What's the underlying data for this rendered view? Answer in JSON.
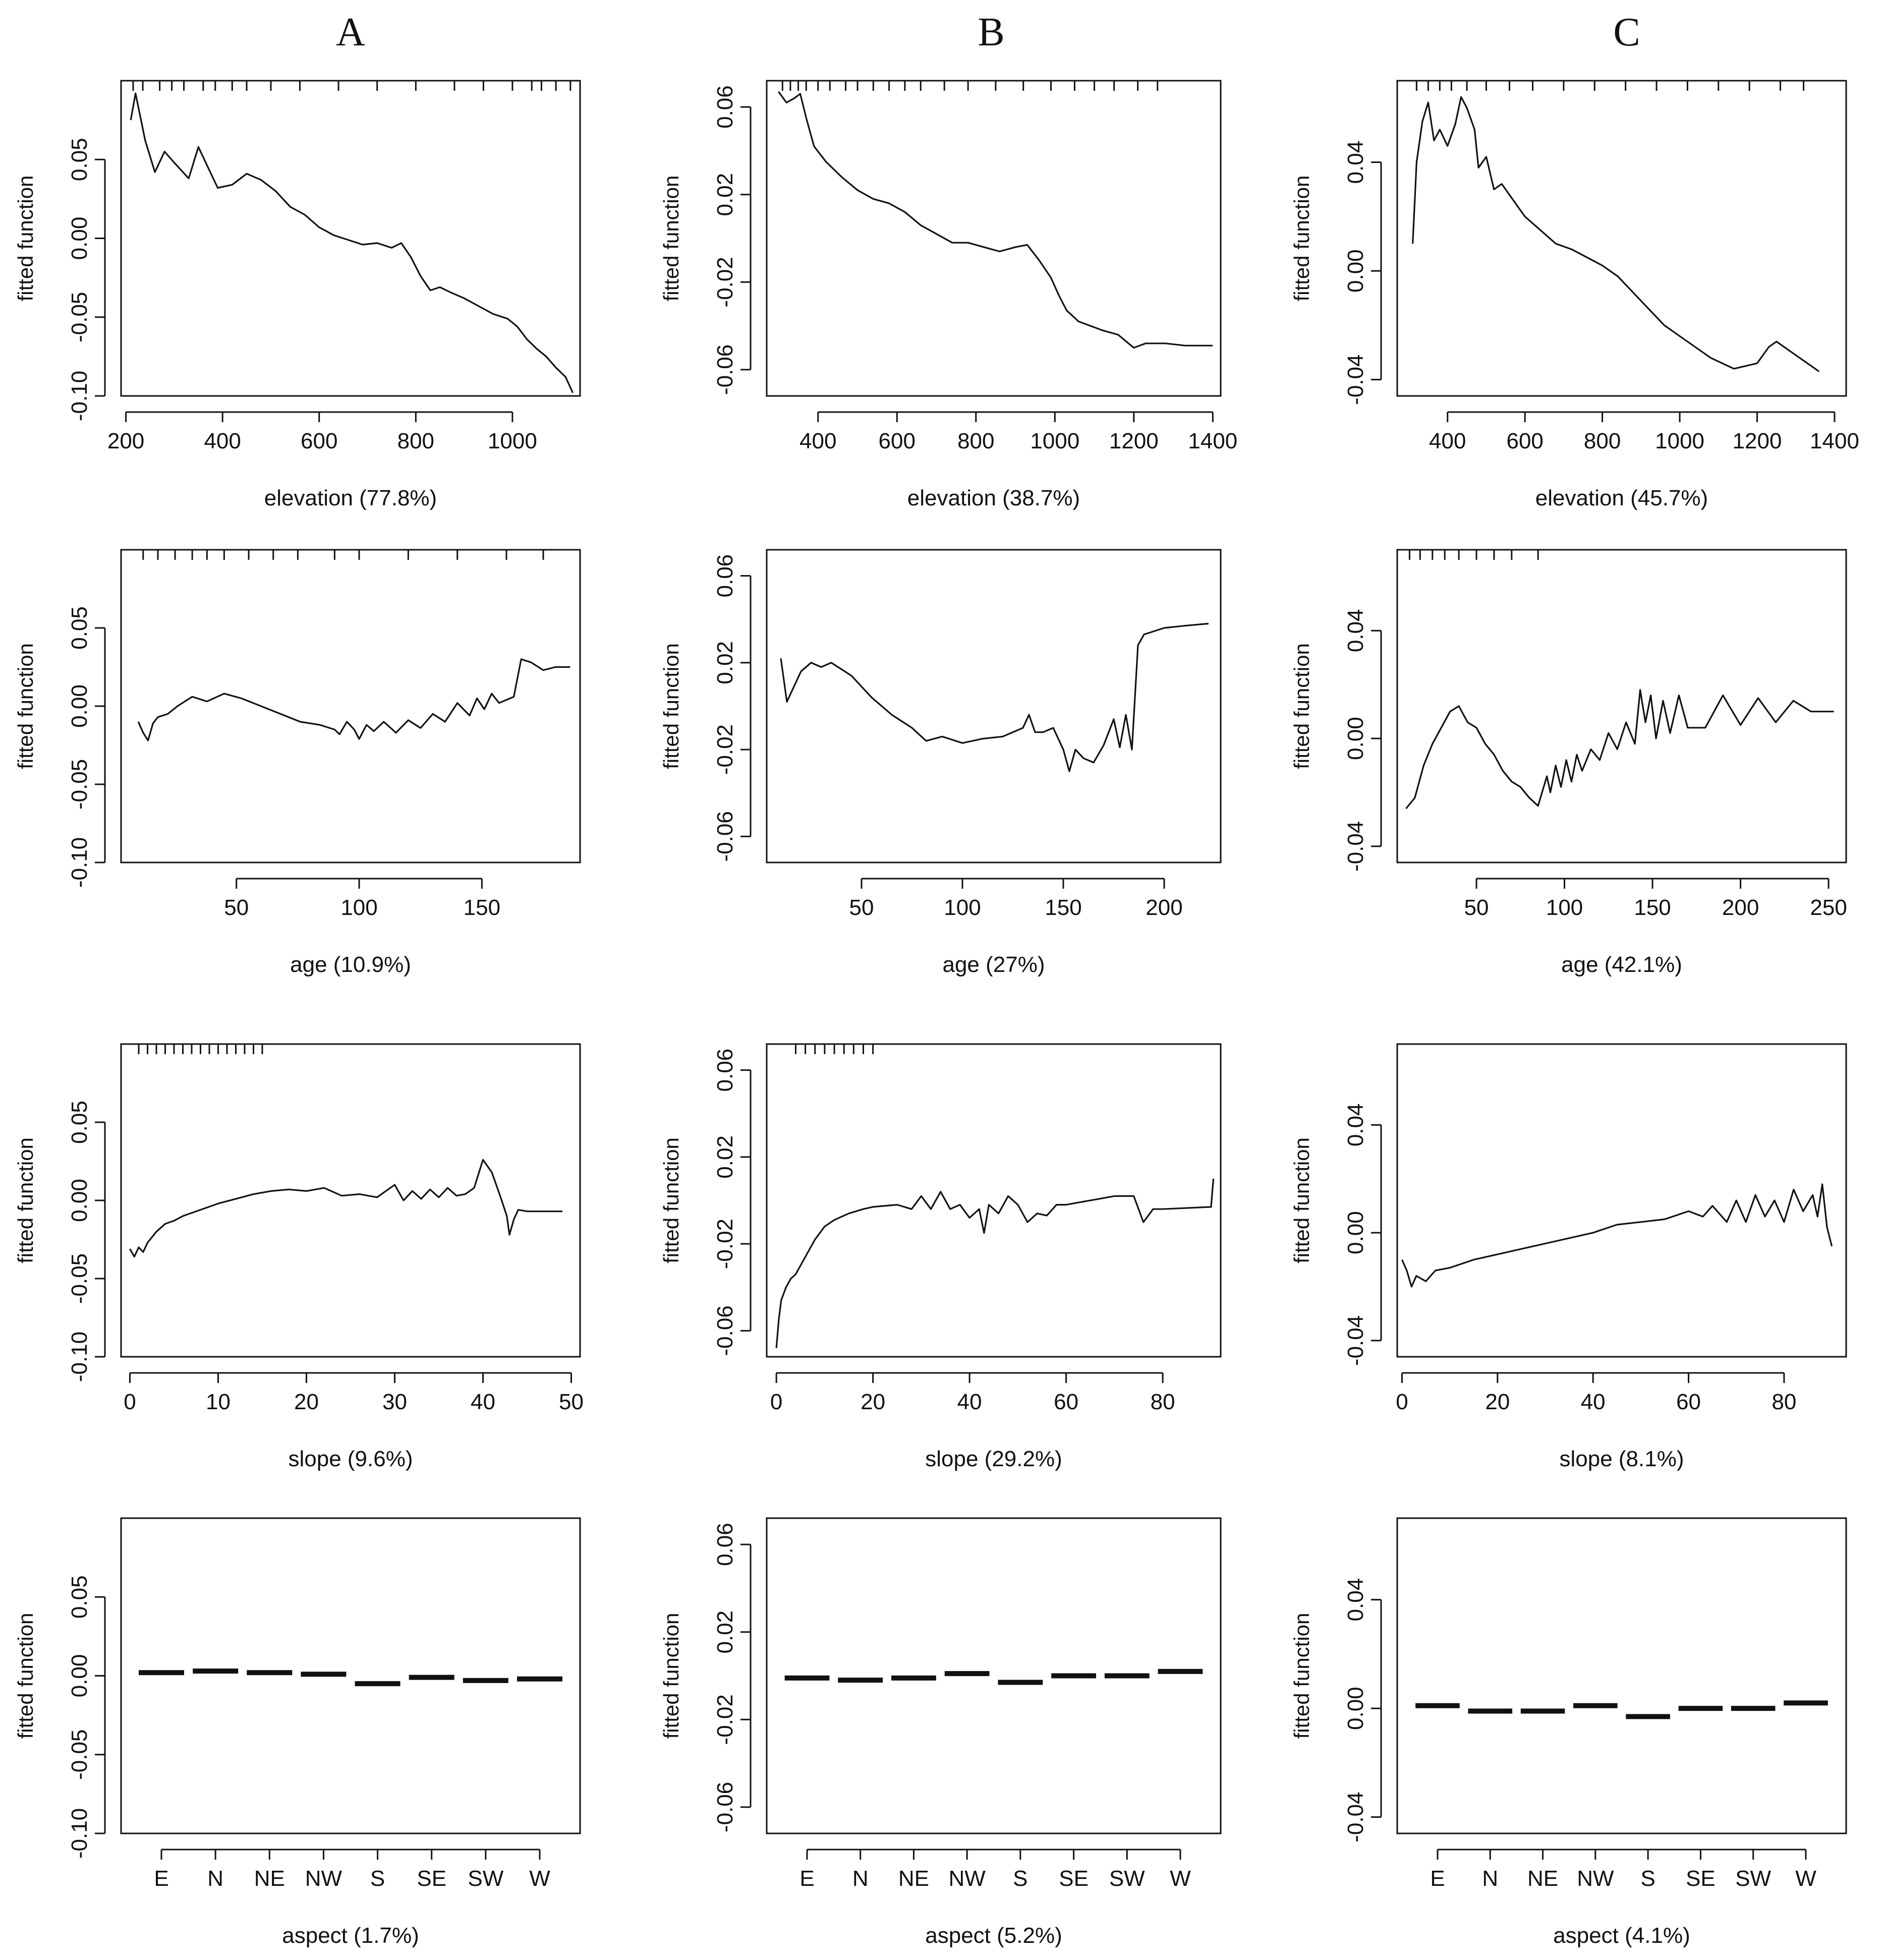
{
  "figure": {
    "column_labels": [
      "A",
      "B",
      "C"
    ]
  },
  "chart_data": [
    {
      "type": "line",
      "panel": "A-elevation",
      "column": "A",
      "xlabel": "elevation  (77.8%)",
      "ylabel": "fitted function",
      "xlim": [
        190,
        1140
      ],
      "ylim": [
        -0.1,
        0.1
      ],
      "xticks": [
        200,
        400,
        600,
        800,
        1000
      ],
      "yticks": [
        -0.1,
        -0.05,
        0.0,
        0.05
      ],
      "ytick_labels": [
        "-0.10",
        "-0.05",
        "0.00",
        "0.05"
      ],
      "rug": [
        215,
        235,
        270,
        295,
        320,
        360,
        385,
        420,
        450,
        500,
        560,
        640,
        720,
        800,
        880,
        940,
        1000,
        1040,
        1060,
        1090,
        1120
      ],
      "x": [
        210,
        220,
        240,
        260,
        280,
        300,
        330,
        350,
        370,
        390,
        420,
        450,
        480,
        510,
        540,
        570,
        600,
        630,
        660,
        690,
        720,
        750,
        770,
        790,
        810,
        830,
        850,
        870,
        900,
        930,
        960,
        990,
        1010,
        1030,
        1050,
        1070,
        1090,
        1110,
        1125
      ],
      "y": [
        0.075,
        0.092,
        0.062,
        0.042,
        0.055,
        0.048,
        0.038,
        0.058,
        0.045,
        0.032,
        0.034,
        0.041,
        0.037,
        0.03,
        0.02,
        0.015,
        0.007,
        0.002,
        -0.001,
        -0.004,
        -0.003,
        -0.006,
        -0.003,
        -0.012,
        -0.024,
        -0.033,
        -0.031,
        -0.034,
        -0.038,
        -0.043,
        -0.048,
        -0.051,
        -0.056,
        -0.064,
        -0.07,
        -0.075,
        -0.082,
        -0.088,
        -0.098
      ]
    },
    {
      "type": "line",
      "panel": "B-elevation",
      "column": "B",
      "xlabel": "elevation  (38.7%)",
      "ylabel": "fitted function",
      "xlim": [
        270,
        1420
      ],
      "ylim": [
        -0.072,
        0.072
      ],
      "xticks": [
        400,
        600,
        800,
        1000,
        1200,
        1400
      ],
      "yticks": [
        -0.06,
        -0.02,
        0.02,
        0.06
      ],
      "ytick_labels": [
        "-0.06",
        "-0.02",
        "0.02",
        "0.06"
      ],
      "rug": [
        310,
        330,
        350,
        370,
        400,
        430,
        470,
        500,
        540,
        580,
        620,
        660,
        720,
        780,
        850,
        920,
        990,
        1050,
        1100,
        1150,
        1210,
        1260
      ],
      "x": [
        300,
        320,
        340,
        355,
        370,
        390,
        420,
        460,
        500,
        540,
        580,
        620,
        660,
        700,
        740,
        780,
        820,
        860,
        900,
        930,
        960,
        990,
        1010,
        1030,
        1060,
        1090,
        1120,
        1160,
        1200,
        1230,
        1280,
        1330,
        1400
      ],
      "y": [
        0.067,
        0.062,
        0.064,
        0.066,
        0.055,
        0.042,
        0.035,
        0.028,
        0.022,
        0.018,
        0.016,
        0.012,
        0.006,
        0.002,
        -0.002,
        -0.002,
        -0.004,
        -0.006,
        -0.004,
        -0.003,
        -0.01,
        -0.018,
        -0.026,
        -0.033,
        -0.038,
        -0.04,
        -0.042,
        -0.044,
        -0.05,
        -0.048,
        -0.048,
        -0.049,
        -0.049
      ]
    },
    {
      "type": "line",
      "panel": "C-elevation",
      "column": "C",
      "xlabel": "elevation  (45.7%)",
      "ylabel": "fitted function",
      "xlim": [
        270,
        1430
      ],
      "ylim": [
        -0.046,
        0.07
      ],
      "xticks": [
        400,
        600,
        800,
        1000,
        1200,
        1400
      ],
      "yticks": [
        -0.04,
        0.0,
        0.04
      ],
      "ytick_labels": [
        "-0.04",
        "0.00",
        "0.04"
      ],
      "rug": [
        320,
        350,
        380,
        410,
        450,
        500,
        560,
        620,
        700,
        780,
        860,
        940,
        1020,
        1100,
        1180,
        1260,
        1320
      ],
      "x": [
        310,
        320,
        335,
        350,
        365,
        380,
        400,
        420,
        435,
        450,
        470,
        480,
        500,
        520,
        540,
        560,
        600,
        640,
        680,
        720,
        760,
        800,
        840,
        880,
        920,
        960,
        1000,
        1040,
        1080,
        1110,
        1140,
        1170,
        1200,
        1230,
        1250,
        1280,
        1310,
        1340,
        1360
      ],
      "y": [
        0.01,
        0.04,
        0.055,
        0.062,
        0.048,
        0.052,
        0.046,
        0.054,
        0.064,
        0.06,
        0.052,
        0.038,
        0.042,
        0.03,
        0.032,
        0.028,
        0.02,
        0.015,
        0.01,
        0.008,
        0.005,
        0.002,
        -0.002,
        -0.008,
        -0.014,
        -0.02,
        -0.024,
        -0.028,
        -0.032,
        -0.034,
        -0.036,
        -0.035,
        -0.034,
        -0.028,
        -0.026,
        -0.029,
        -0.032,
        -0.035,
        -0.037
      ]
    },
    {
      "type": "line",
      "panel": "A-age",
      "column": "A",
      "xlabel": "age  (10.9%)",
      "ylabel": "fitted function",
      "xlim": [
        3,
        190
      ],
      "ylim": [
        -0.1,
        0.1
      ],
      "xticks": [
        50,
        100,
        150
      ],
      "yticks": [
        -0.1,
        -0.05,
        0.0,
        0.05
      ],
      "ytick_labels": [
        "-0.10",
        "-0.05",
        "0.00",
        "0.05"
      ],
      "rug": [
        12,
        18,
        25,
        32,
        38,
        45,
        55,
        65,
        75,
        90,
        100,
        120,
        140,
        160,
        175
      ],
      "x": [
        10,
        12,
        14,
        16,
        18,
        22,
        26,
        32,
        38,
        45,
        52,
        60,
        68,
        76,
        84,
        90,
        92,
        95,
        98,
        100,
        103,
        106,
        110,
        115,
        120,
        125,
        130,
        135,
        140,
        145,
        148,
        151,
        154,
        157,
        160,
        163,
        166,
        170,
        175,
        180,
        186
      ],
      "y": [
        -0.01,
        -0.017,
        -0.022,
        -0.011,
        -0.007,
        -0.005,
        0.0,
        0.006,
        0.003,
        0.008,
        0.005,
        0.0,
        -0.005,
        -0.01,
        -0.012,
        -0.015,
        -0.018,
        -0.01,
        -0.015,
        -0.021,
        -0.012,
        -0.016,
        -0.01,
        -0.017,
        -0.009,
        -0.014,
        -0.005,
        -0.01,
        0.002,
        -0.006,
        0.005,
        -0.002,
        0.008,
        0.002,
        0.004,
        0.006,
        0.03,
        0.028,
        0.023,
        0.025,
        0.025
      ]
    },
    {
      "type": "line",
      "panel": "B-age",
      "column": "B",
      "xlabel": "age  (27%)",
      "ylabel": "fitted function",
      "xlim": [
        3,
        228
      ],
      "ylim": [
        -0.072,
        0.072
      ],
      "xticks": [
        50,
        100,
        150,
        200
      ],
      "yticks": [
        -0.06,
        -0.02,
        0.02,
        0.06
      ],
      "ytick_labels": [
        "-0.06",
        "-0.02",
        "0.02",
        "0.06"
      ],
      "rug": [],
      "x": [
        10,
        13,
        17,
        20,
        25,
        30,
        35,
        45,
        55,
        65,
        75,
        82,
        90,
        100,
        110,
        120,
        130,
        133,
        136,
        140,
        145,
        150,
        153,
        156,
        160,
        165,
        170,
        175,
        178,
        181,
        184,
        187,
        190,
        200,
        210,
        222
      ],
      "y": [
        0.022,
        0.002,
        0.01,
        0.016,
        0.02,
        0.018,
        0.02,
        0.014,
        0.004,
        -0.004,
        -0.01,
        -0.016,
        -0.014,
        -0.017,
        -0.015,
        -0.014,
        -0.01,
        -0.004,
        -0.012,
        -0.012,
        -0.01,
        -0.02,
        -0.03,
        -0.02,
        -0.024,
        -0.026,
        -0.018,
        -0.006,
        -0.019,
        -0.004,
        -0.02,
        0.028,
        0.033,
        0.036,
        0.037,
        0.038
      ]
    },
    {
      "type": "line",
      "panel": "C-age",
      "column": "C",
      "xlabel": "age  (42.1%)",
      "ylabel": "fitted function",
      "xlim": [
        5,
        260
      ],
      "ylim": [
        -0.046,
        0.07
      ],
      "xticks": [
        50,
        100,
        150,
        200,
        250
      ],
      "yticks": [
        -0.04,
        0.0,
        0.04
      ],
      "ytick_labels": [
        "-0.04",
        "0.00",
        "0.04"
      ],
      "rug": [
        12,
        18,
        25,
        32,
        40,
        50,
        60,
        70,
        85
      ],
      "x": [
        10,
        15,
        20,
        25,
        30,
        35,
        40,
        45,
        50,
        55,
        60,
        65,
        70,
        75,
        80,
        85,
        90,
        92,
        95,
        98,
        101,
        104,
        107,
        110,
        115,
        120,
        125,
        130,
        135,
        140,
        143,
        146,
        149,
        152,
        156,
        160,
        165,
        170,
        180,
        190,
        200,
        210,
        220,
        230,
        240,
        253
      ],
      "y": [
        -0.026,
        -0.022,
        -0.01,
        -0.002,
        0.004,
        0.01,
        0.012,
        0.006,
        0.004,
        -0.002,
        -0.006,
        -0.012,
        -0.016,
        -0.018,
        -0.022,
        -0.025,
        -0.014,
        -0.02,
        -0.01,
        -0.018,
        -0.008,
        -0.016,
        -0.006,
        -0.012,
        -0.004,
        -0.008,
        0.002,
        -0.004,
        0.006,
        -0.002,
        0.018,
        0.006,
        0.016,
        0.0,
        0.014,
        0.002,
        0.016,
        0.004,
        0.004,
        0.016,
        0.005,
        0.015,
        0.006,
        0.014,
        0.01,
        0.01
      ]
    },
    {
      "type": "line",
      "panel": "A-slope",
      "column": "A",
      "xlabel": "slope  (9.6%)",
      "ylabel": "fitted function",
      "xlim": [
        -1,
        51
      ],
      "ylim": [
        -0.1,
        0.1
      ],
      "xticks": [
        0,
        10,
        20,
        30,
        40,
        50
      ],
      "yticks": [
        -0.1,
        -0.05,
        0.0,
        0.05
      ],
      "ytick_labels": [
        "-0.10",
        "-0.05",
        "0.00",
        "0.05"
      ],
      "rug": [
        1,
        2,
        3,
        4,
        5,
        6,
        7,
        8,
        9,
        10,
        11,
        12,
        13,
        14,
        15
      ],
      "x": [
        0,
        0.5,
        1,
        1.5,
        2,
        3,
        4,
        5,
        6,
        8,
        10,
        12,
        14,
        16,
        18,
        20,
        22,
        24,
        26,
        28,
        30,
        31,
        32,
        33,
        34,
        35,
        36,
        37,
        38,
        39,
        40,
        41,
        42,
        42.7,
        43,
        43.5,
        44,
        45,
        47,
        49
      ],
      "y": [
        -0.031,
        -0.036,
        -0.03,
        -0.033,
        -0.027,
        -0.02,
        -0.015,
        -0.013,
        -0.01,
        -0.006,
        -0.002,
        0.001,
        0.004,
        0.006,
        0.007,
        0.006,
        0.008,
        0.003,
        0.004,
        0.002,
        0.01,
        0.0,
        0.006,
        0.001,
        0.007,
        0.002,
        0.008,
        0.003,
        0.004,
        0.008,
        0.026,
        0.018,
        0.002,
        -0.01,
        -0.022,
        -0.012,
        -0.006,
        -0.007,
        -0.007,
        -0.007
      ]
    },
    {
      "type": "line",
      "panel": "B-slope",
      "column": "B",
      "xlabel": "slope  (29.2%)",
      "ylabel": "fitted function",
      "xlim": [
        -2,
        92
      ],
      "ylim": [
        -0.072,
        0.072
      ],
      "xticks": [
        0,
        20,
        40,
        60,
        80
      ],
      "yticks": [
        -0.06,
        -0.02,
        0.02,
        0.06
      ],
      "ytick_labels": [
        "-0.06",
        "-0.02",
        "0.02",
        "0.06"
      ],
      "rug": [
        4,
        6,
        8,
        10,
        12,
        14,
        16,
        18,
        20
      ],
      "x": [
        0,
        0.5,
        1,
        2,
        3,
        4,
        6,
        8,
        10,
        12,
        15,
        18,
        20,
        25,
        28,
        30,
        32,
        34,
        36,
        38,
        40,
        42,
        43,
        44,
        46,
        48,
        50,
        52,
        54,
        56,
        58,
        60,
        70,
        74,
        76,
        78,
        80,
        90,
        90.5
      ],
      "y": [
        -0.068,
        -0.055,
        -0.046,
        -0.04,
        -0.036,
        -0.034,
        -0.026,
        -0.018,
        -0.012,
        -0.009,
        -0.006,
        -0.004,
        -0.003,
        -0.002,
        -0.004,
        0.002,
        -0.004,
        0.004,
        -0.004,
        -0.002,
        -0.008,
        -0.004,
        -0.015,
        -0.002,
        -0.006,
        0.002,
        -0.002,
        -0.01,
        -0.006,
        -0.007,
        -0.002,
        -0.002,
        0.002,
        0.002,
        -0.01,
        -0.004,
        -0.004,
        -0.003,
        0.01
      ]
    },
    {
      "type": "line",
      "panel": "C-slope",
      "column": "C",
      "xlabel": "slope  (8.1%)",
      "ylabel": "fitted function",
      "xlim": [
        -1,
        93
      ],
      "ylim": [
        -0.046,
        0.07
      ],
      "xticks": [
        0,
        20,
        40,
        60,
        80
      ],
      "yticks": [
        -0.04,
        0.0,
        0.04
      ],
      "ytick_labels": [
        "-0.04",
        "0.00",
        "0.04"
      ],
      "rug": [],
      "x": [
        0,
        1,
        2,
        3,
        5,
        7,
        10,
        15,
        20,
        25,
        30,
        35,
        40,
        45,
        50,
        55,
        60,
        63,
        65,
        68,
        70,
        72,
        74,
        76,
        78,
        80,
        82,
        84,
        86,
        87,
        88,
        89,
        90
      ],
      "y": [
        -0.01,
        -0.014,
        -0.02,
        -0.016,
        -0.018,
        -0.014,
        -0.013,
        -0.01,
        -0.008,
        -0.006,
        -0.004,
        -0.002,
        0.0,
        0.003,
        0.004,
        0.005,
        0.008,
        0.006,
        0.01,
        0.004,
        0.012,
        0.004,
        0.014,
        0.006,
        0.012,
        0.004,
        0.016,
        0.008,
        0.014,
        0.006,
        0.018,
        0.002,
        -0.005
      ]
    },
    {
      "type": "bar",
      "panel": "A-aspect",
      "column": "A",
      "xlabel": "aspect  (1.7%)",
      "ylabel": "fitted function",
      "categories": [
        "E",
        "N",
        "NE",
        "NW",
        "S",
        "SE",
        "SW",
        "W"
      ],
      "values": [
        0.002,
        0.003,
        0.002,
        0.001,
        -0.005,
        -0.001,
        -0.003,
        -0.002
      ],
      "ylim": [
        -0.1,
        0.1
      ],
      "yticks": [
        -0.1,
        -0.05,
        0.0,
        0.05
      ],
      "ytick_labels": [
        "-0.10",
        "-0.05",
        "0.00",
        "0.05"
      ]
    },
    {
      "type": "bar",
      "panel": "B-aspect",
      "column": "B",
      "xlabel": "aspect  (5.2%)",
      "ylabel": "fitted function",
      "categories": [
        "E",
        "N",
        "NE",
        "NW",
        "S",
        "SE",
        "SW",
        "W"
      ],
      "values": [
        -0.001,
        -0.002,
        -0.001,
        0.001,
        -0.003,
        0.0,
        0.0,
        0.002
      ],
      "ylim": [
        -0.072,
        0.072
      ],
      "yticks": [
        -0.06,
        -0.02,
        0.02,
        0.06
      ],
      "ytick_labels": [
        "-0.06",
        "-0.02",
        "0.02",
        "0.06"
      ]
    },
    {
      "type": "bar",
      "panel": "C-aspect",
      "column": "C",
      "xlabel": "aspect  (4.1%)",
      "ylabel": "fitted function",
      "categories": [
        "E",
        "N",
        "NE",
        "NW",
        "S",
        "SE",
        "SW",
        "W"
      ],
      "values": [
        0.001,
        -0.001,
        -0.001,
        0.001,
        -0.003,
        0.0,
        0.0,
        0.002
      ],
      "ylim": [
        -0.046,
        0.07
      ],
      "yticks": [
        -0.04,
        0.0,
        0.04
      ],
      "ytick_labels": [
        "-0.04",
        "0.00",
        "0.04"
      ]
    }
  ]
}
